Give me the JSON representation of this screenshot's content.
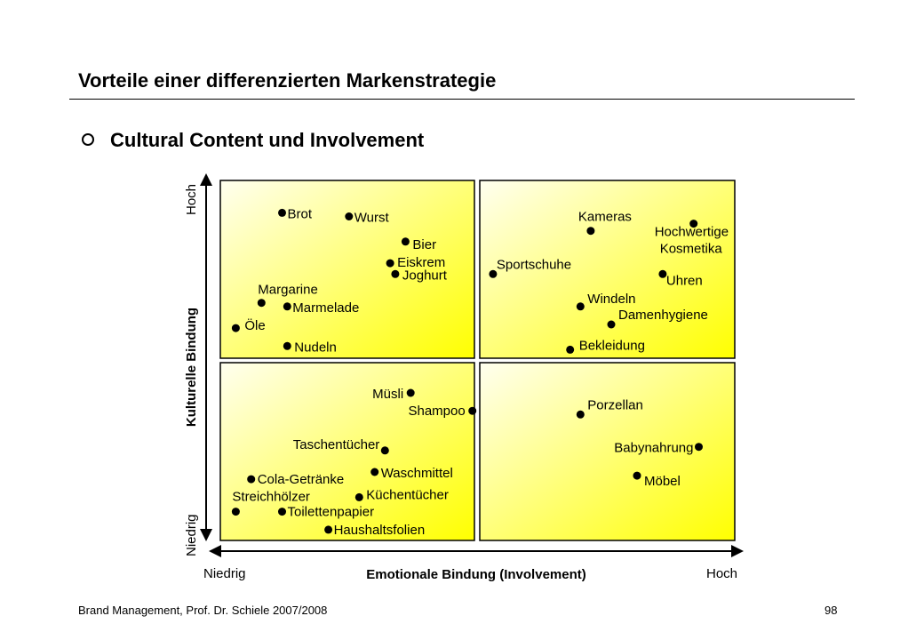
{
  "slide": {
    "title": "Vorteile einer differenzierten Markenstrategie",
    "subtitle": "Cultural Content und Involvement"
  },
  "footer": {
    "left": "Brand Management, Prof. Dr. Schiele 2007/2008",
    "page_number": "98"
  },
  "axes": {
    "y_title": "Kulturelle Bindung",
    "y_high": "Hoch",
    "y_low": "Niedrig",
    "x_title": "Emotionale Bindung (Involvement)",
    "x_low": "Niedrig",
    "x_high": "Hoch"
  },
  "colors": {
    "quadrant_light": "#fffff0",
    "quadrant_dark": "#ffff00",
    "dot": "#000000"
  },
  "items": [
    {
      "label": "Brot",
      "emotional": 1.2,
      "cultural": 9.1
    },
    {
      "label": "Wurst",
      "emotional": 2.5,
      "cultural": 9.0
    },
    {
      "label": "Bier",
      "emotional": 3.6,
      "cultural": 8.3
    },
    {
      "label": "Eiskrem",
      "emotional": 3.3,
      "cultural": 7.7
    },
    {
      "label": "Joghurt",
      "emotional": 3.4,
      "cultural": 7.4
    },
    {
      "label": "Margarine",
      "emotional": 0.8,
      "cultural": 6.6
    },
    {
      "label": "Marmelade",
      "emotional": 1.3,
      "cultural": 6.5
    },
    {
      "label": "Öle",
      "emotional": 0.3,
      "cultural": 5.9
    },
    {
      "label": "Nudeln",
      "emotional": 1.3,
      "cultural": 5.4
    },
    {
      "label": "Kameras",
      "emotional": 7.2,
      "cultural": 8.6
    },
    {
      "label": "Hochwertige",
      "label2": "Kosmetika",
      "emotional": 9.2,
      "cultural": 8.8
    },
    {
      "label": "Sportschuhe",
      "emotional": 5.3,
      "cultural": 7.4
    },
    {
      "label": "Uhren",
      "emotional": 8.6,
      "cultural": 7.4
    },
    {
      "label": "Windeln",
      "emotional": 7.0,
      "cultural": 6.5
    },
    {
      "label": "Damenhygiene",
      "emotional": 7.6,
      "cultural": 6.0
    },
    {
      "label": "Bekleidung",
      "emotional": 6.8,
      "cultural": 5.3
    },
    {
      "label": "Müsli",
      "emotional": 3.7,
      "cultural": 4.1
    },
    {
      "label": "Shampoo",
      "emotional": 4.9,
      "cultural": 3.6
    },
    {
      "label": "Taschentücher",
      "emotional": 3.2,
      "cultural": 2.5
    },
    {
      "label": "Cola-Getränke",
      "emotional": 0.6,
      "cultural": 1.7
    },
    {
      "label": "Waschmittel",
      "emotional": 3.0,
      "cultural": 1.9
    },
    {
      "label": "Streichhölzer",
      "emotional": 0.3,
      "cultural": 0.8
    },
    {
      "label": "Küchentücher",
      "emotional": 2.7,
      "cultural": 1.2
    },
    {
      "label": "Toilettenpapier",
      "emotional": 1.2,
      "cultural": 0.8
    },
    {
      "label": "Haushaltsfolien",
      "emotional": 2.1,
      "cultural": 0.3
    },
    {
      "label": "Porzellan",
      "emotional": 7.0,
      "cultural": 3.5
    },
    {
      "label": "Babynahrung",
      "emotional": 9.3,
      "cultural": 2.6
    },
    {
      "label": "Möbel",
      "emotional": 8.1,
      "cultural": 1.8
    }
  ]
}
